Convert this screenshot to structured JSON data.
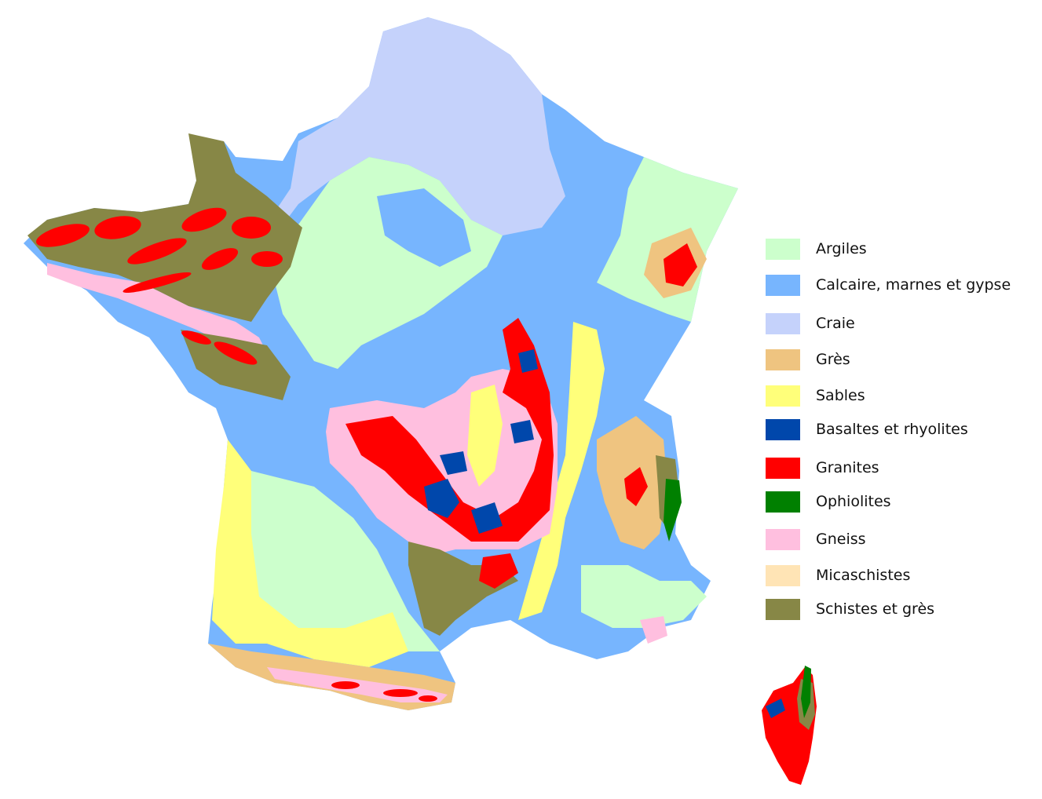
{
  "map": {
    "region": "France",
    "inset": "Corse",
    "layers": [
      {
        "key": "argiles",
        "color": "#ccffcc"
      },
      {
        "key": "calcaire",
        "color": "#77b5fe"
      },
      {
        "key": "craie",
        "color": "#c5d2fb"
      },
      {
        "key": "gres",
        "color": "#efc480"
      },
      {
        "key": "sables",
        "color": "#ffff7a"
      },
      {
        "key": "basaltes",
        "color": "#0047ab"
      },
      {
        "key": "granites",
        "color": "#ff0000"
      },
      {
        "key": "ophiolites",
        "color": "#008000"
      },
      {
        "key": "gneiss",
        "color": "#ffbfdf"
      },
      {
        "key": "micaschistes",
        "color": "#ffe4b5"
      },
      {
        "key": "schistes",
        "color": "#878746"
      }
    ]
  },
  "legend": {
    "items": [
      {
        "label": "Argiles",
        "color": "#ccffcc"
      },
      {
        "label": "Calcaire, marnes et gypse",
        "color": "#77b5fe"
      },
      {
        "label": "Craie",
        "color": "#c5d2fb"
      },
      {
        "label": "Grès",
        "color": "#efc480"
      },
      {
        "label": "Sables",
        "color": "#ffff7a"
      },
      {
        "label": "Basaltes et rhyolites",
        "color": "#0047ab"
      },
      {
        "label": "Granites",
        "color": "#ff0000"
      },
      {
        "label": "Ophiolites",
        "color": "#008000"
      },
      {
        "label": "Gneiss",
        "color": "#ffbfdf"
      },
      {
        "label": "Micaschistes",
        "color": "#ffe4b5"
      },
      {
        "label": "Schistes et grès",
        "color": "#878746"
      }
    ]
  }
}
